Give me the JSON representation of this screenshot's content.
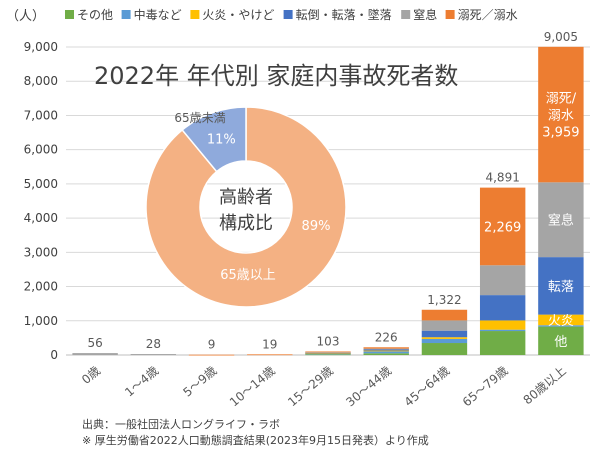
{
  "chart_data": [
    {
      "type": "bar",
      "stacked": true,
      "title": "2022年 年代別 家庭内事故死者数",
      "ylabel": "（人）",
      "ylim": [
        0,
        9000
      ],
      "yticks": [
        0,
        1000,
        2000,
        3000,
        4000,
        5000,
        6000,
        7000,
        8000,
        9000
      ],
      "ytick_labels": [
        "0",
        "1,000",
        "2,000",
        "3,000",
        "4,000",
        "5,000",
        "6,000",
        "7,000",
        "8,000",
        "9,000"
      ],
      "grid": true,
      "legend_position": "top",
      "categories": [
        "0歳",
        "1～4歳",
        "5～9歳",
        "10～14歳",
        "15～29歳",
        "30～44歳",
        "45～64歳",
        "65～79歳",
        "80歳以上"
      ],
      "totals": [
        56,
        28,
        9,
        19,
        103,
        226,
        1322,
        4891,
        9005
      ],
      "total_labels": [
        "56",
        "28",
        "9",
        "19",
        "103",
        "226",
        "1,322",
        "4,891",
        "9,005"
      ],
      "series": [
        {
          "name": "その他",
          "color": "#70ad47",
          "values": [
            0,
            0,
            0,
            0,
            20,
            50,
            350,
            700,
            830
          ]
        },
        {
          "name": "中毒など",
          "color": "#5b9bd5",
          "values": [
            0,
            0,
            0,
            0,
            25,
            60,
            120,
            40,
            40
          ]
        },
        {
          "name": "火炎・やけど",
          "color": "#ffc000",
          "values": [
            0,
            0,
            0,
            0,
            10,
            20,
            50,
            270,
            310
          ]
        },
        {
          "name": "転倒・転落・墜落",
          "color": "#4472c4",
          "values": [
            0,
            0,
            0,
            0,
            15,
            40,
            190,
            740,
            1680
          ]
        },
        {
          "name": "窒息",
          "color": "#a5a5a5",
          "values": [
            56,
            28,
            0,
            0,
            10,
            16,
            300,
            872,
            2186
          ]
        },
        {
          "name": "溺死／溺水",
          "color": "#ed7d31",
          "values": [
            0,
            0,
            9,
            19,
            23,
            40,
            312,
            2269,
            3959
          ]
        }
      ],
      "segment_labels": [
        {
          "bar": 7,
          "series": 5,
          "text": "2,269"
        },
        {
          "bar": 8,
          "series": 5,
          "text": "溺死/\n溺水\n3,959"
        },
        {
          "bar": 8,
          "series": 4,
          "text": "窒息"
        },
        {
          "bar": 8,
          "series": 3,
          "text": "転落"
        },
        {
          "bar": 8,
          "series": 2,
          "text": "火炎"
        },
        {
          "bar": 8,
          "series": 0,
          "text": "他"
        }
      ],
      "source_lines": [
        "出典：一般社団法人ロングライフ・ラボ",
        "※ 厚生労働省2022人口動態調査結果(2023年9月15日発表）より作成"
      ]
    },
    {
      "type": "pie",
      "variant": "donut",
      "center_label": [
        "高齢者",
        "構成比"
      ],
      "slices": [
        {
          "label": "65歳以上",
          "value": 89,
          "value_label": "89%",
          "color": "#f4b183"
        },
        {
          "label": "65歳未満",
          "value": 11,
          "value_label": "11%",
          "color": "#8faadc"
        }
      ]
    }
  ]
}
